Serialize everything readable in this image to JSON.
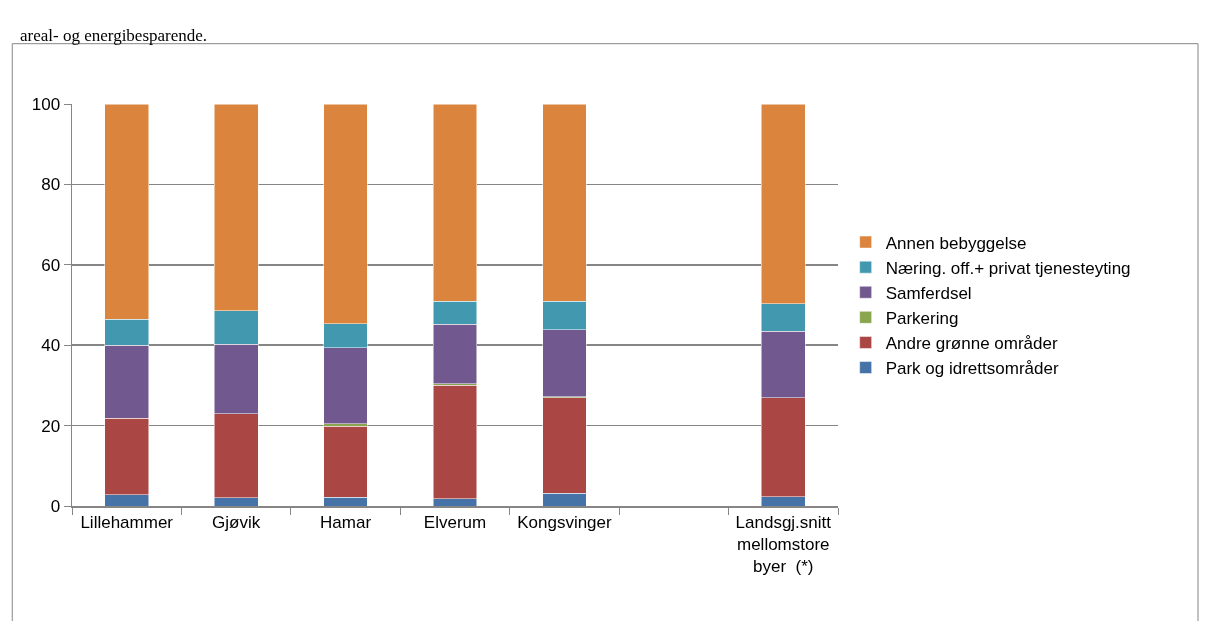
{
  "chart_data": {
    "type": "bar",
    "stacked": true,
    "categories": [
      "Lillehammer",
      "Gjøvik",
      "Hamar",
      "Elverum",
      "Kongsvinger",
      null,
      "Landsgj.snitt\nmellomstore\nbyer  (*)"
    ],
    "series": [
      {
        "name": "Park og idrettsområder",
        "color": "#4572a7",
        "values": [
          2.8,
          2.0,
          2.2,
          1.8,
          3.2,
          null,
          2.3
        ]
      },
      {
        "name": "Andre grønne områder",
        "color": "#aa4643",
        "values": [
          19.0,
          21.0,
          17.7,
          28.2,
          23.7,
          null,
          24.6
        ]
      },
      {
        "name": "Parkering",
        "color": "#89a54e",
        "values": [
          null,
          null,
          0.5,
          0.4,
          0.3,
          null,
          null
        ]
      },
      {
        "name": "Samferdsel",
        "color": "#71588f",
        "values": [
          18.2,
          17.2,
          19.0,
          14.8,
          16.7,
          null,
          16.6
        ]
      },
      {
        "name": "Næring. off.+ privat tjenesteyting",
        "color": "#4198af",
        "values": [
          6.5,
          8.4,
          5.9,
          5.7,
          7.0,
          null,
          6.8
        ]
      },
      {
        "name": "Annen bebyggelse",
        "color": "#db843d",
        "values": [
          53.5,
          51.4,
          54.7,
          49.1,
          49.1,
          null,
          49.7
        ]
      }
    ],
    "ylim": [
      0,
      100
    ],
    "yticks": [
      0,
      20,
      40,
      60,
      80,
      100
    ],
    "grid": "y",
    "legend": "right",
    "annotations": [
      "areal- og energibesparende."
    ]
  }
}
